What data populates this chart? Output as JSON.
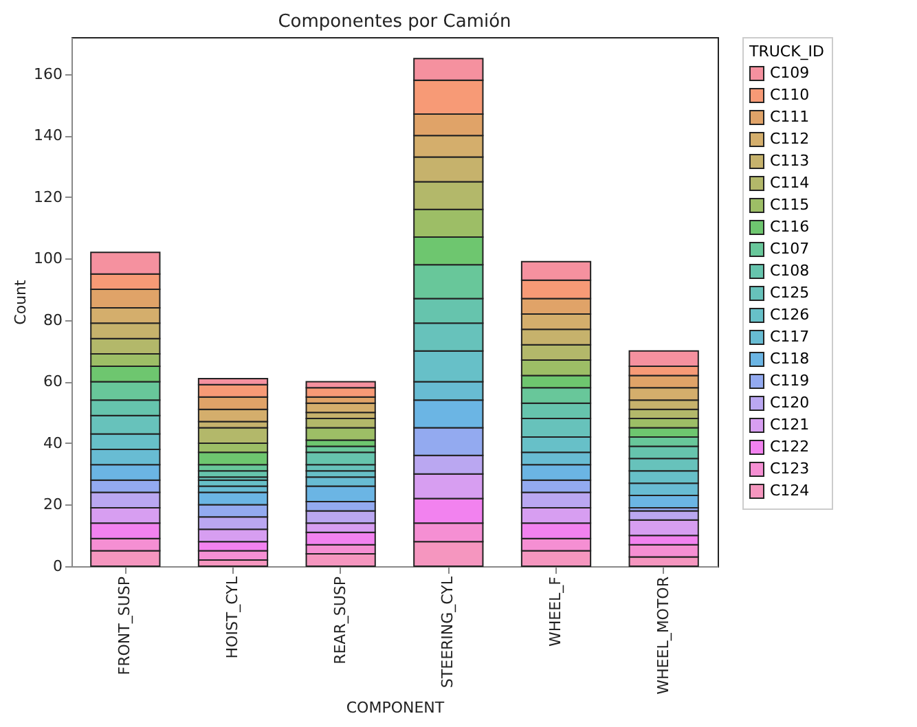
{
  "chart_data": {
    "type": "bar",
    "title": "Componentes por Camión",
    "xlabel": "COMPONENT",
    "ylabel": "Count",
    "legend_title": "TRUCK_ID",
    "categories": [
      "FRONT_SUSP",
      "HOIST_CYL",
      "REAR_SUSP",
      "STEERING_CYL",
      "WHEEL_F",
      "WHEEL_MOTOR"
    ],
    "stacked": true,
    "ylim": [
      0,
      172
    ],
    "yticks": [
      0,
      20,
      40,
      60,
      80,
      100,
      120,
      140,
      160
    ],
    "grid": false,
    "legend": "right",
    "series": [
      {
        "name": "C124",
        "color": "#f596bf",
        "values": [
          5,
          2,
          4,
          8,
          5,
          3
        ]
      },
      {
        "name": "C123",
        "color": "#f58fd3",
        "values": [
          4,
          3,
          3,
          6,
          4,
          4
        ]
      },
      {
        "name": "C122",
        "color": "#f282ef",
        "values": [
          5,
          3,
          4,
          8,
          5,
          3
        ]
      },
      {
        "name": "C121",
        "color": "#d79ef1",
        "values": [
          5,
          4,
          3,
          8,
          5,
          5
        ]
      },
      {
        "name": "C120",
        "color": "#baa7f1",
        "values": [
          5,
          4,
          4,
          6,
          5,
          3
        ]
      },
      {
        "name": "C119",
        "color": "#93aaf0",
        "values": [
          4,
          4,
          3,
          9,
          4,
          1
        ]
      },
      {
        "name": "C118",
        "color": "#6bb5e4",
        "values": [
          5,
          4,
          5,
          9,
          5,
          4
        ]
      },
      {
        "name": "C117",
        "color": "#68bcd3",
        "values": [
          5,
          2,
          3,
          6,
          4,
          4
        ]
      },
      {
        "name": "C126",
        "color": "#67c0c8",
        "values": [
          5,
          2,
          2,
          10,
          5,
          4
        ]
      },
      {
        "name": "C125",
        "color": "#67c2bb",
        "values": [
          6,
          1,
          2,
          9,
          6,
          4
        ]
      },
      {
        "name": "C108",
        "color": "#66c4ad",
        "values": [
          5,
          2,
          4,
          8,
          5,
          4
        ]
      },
      {
        "name": "C107",
        "color": "#68c79a",
        "values": [
          6,
          2,
          2,
          11,
          5,
          3
        ]
      },
      {
        "name": "C116",
        "color": "#6ec66f",
        "values": [
          5,
          4,
          2,
          9,
          4,
          3
        ]
      },
      {
        "name": "C115",
        "color": "#9dbe66",
        "values": [
          4,
          3,
          4,
          9,
          5,
          3
        ]
      },
      {
        "name": "C114",
        "color": "#b3b86a",
        "values": [
          5,
          5,
          3,
          9,
          5,
          3
        ]
      },
      {
        "name": "C113",
        "color": "#c6b26c",
        "values": [
          5,
          2,
          2,
          8,
          5,
          3
        ]
      },
      {
        "name": "C112",
        "color": "#d4ae6c",
        "values": [
          5,
          4,
          3,
          7,
          5,
          4
        ]
      },
      {
        "name": "C111",
        "color": "#e0a368",
        "values": [
          6,
          4,
          2,
          7,
          5,
          4
        ]
      },
      {
        "name": "C110",
        "color": "#f79a76",
        "values": [
          5,
          4,
          3,
          11,
          6,
          3
        ]
      },
      {
        "name": "C109",
        "color": "#f5919f",
        "values": [
          7,
          2,
          2,
          7,
          6,
          5
        ]
      }
    ]
  }
}
